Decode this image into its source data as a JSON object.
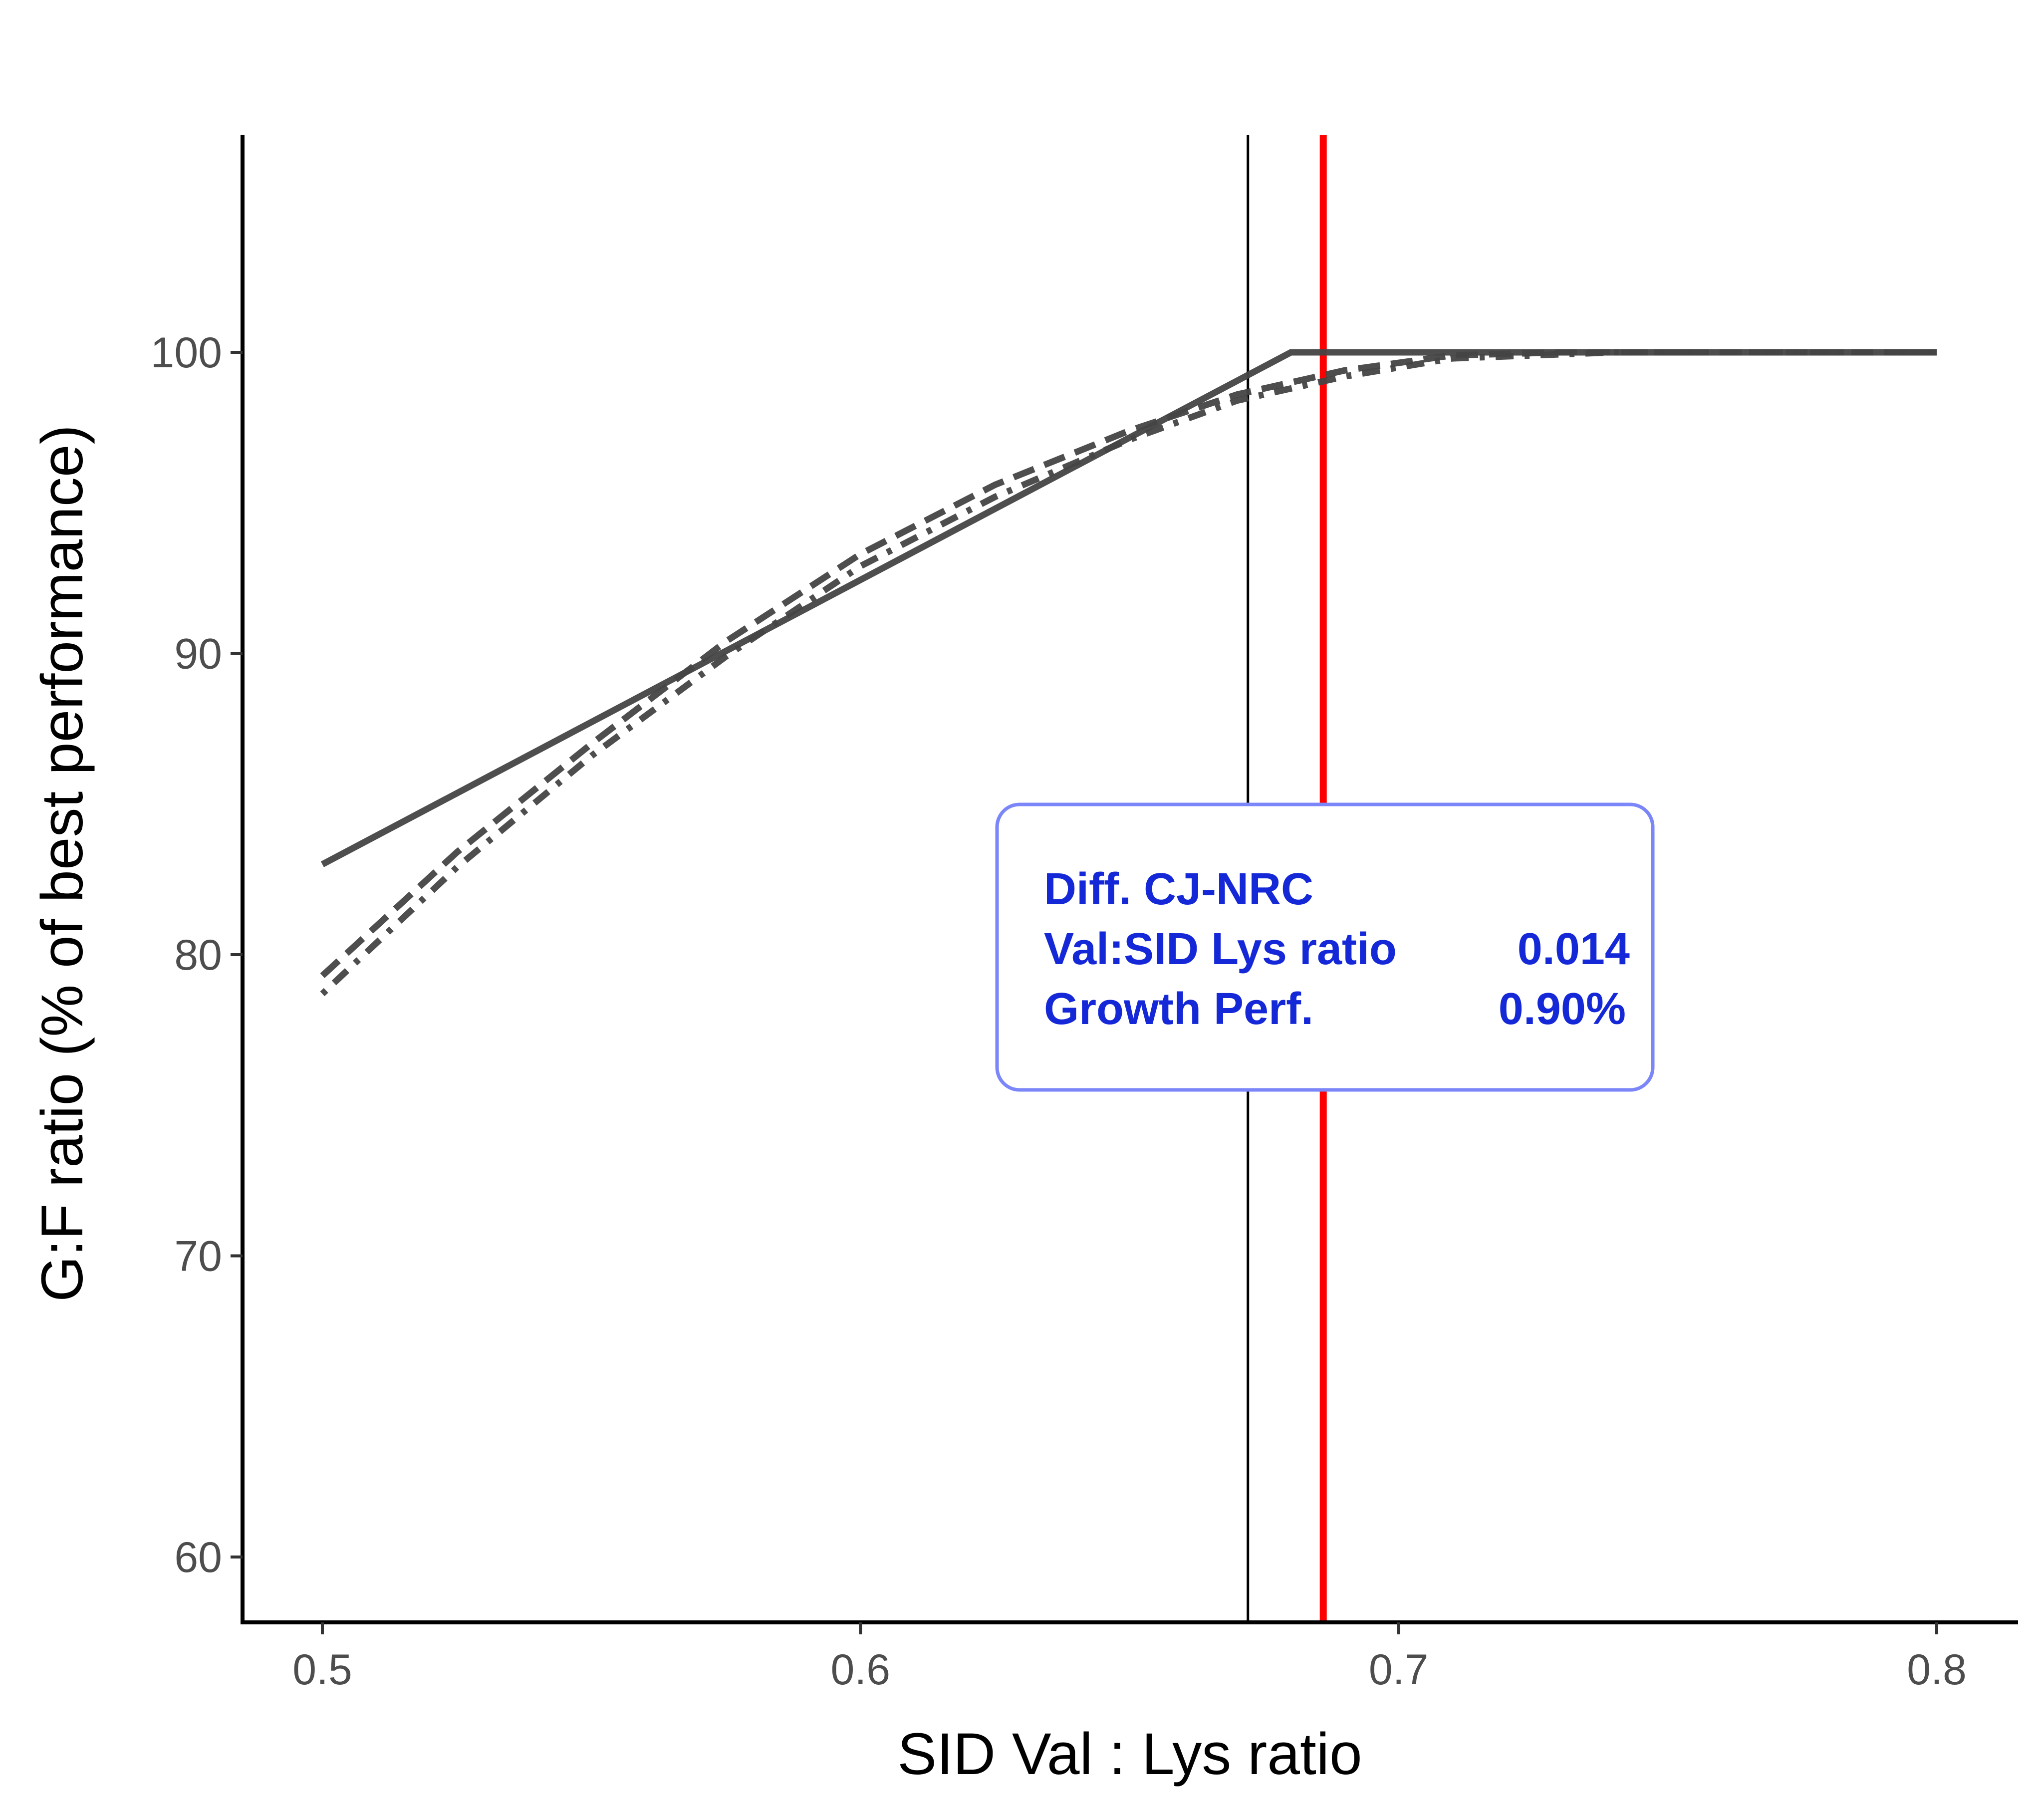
{
  "chart_data": {
    "type": "line",
    "title": "",
    "xlabel": "SID Val : Lys ratio",
    "ylabel": "G:F ratio (% of best performance)",
    "xlim": [
      0.485,
      0.815
    ],
    "ylim": [
      57.8,
      107.2
    ],
    "xticks": [
      0.5,
      0.6,
      0.7,
      0.8
    ],
    "xtick_labels": [
      "0.5",
      "0.6",
      "0.7",
      "0.8"
    ],
    "yticks": [
      60,
      70,
      80,
      90,
      100
    ],
    "ytick_labels": [
      "60",
      "70",
      "80",
      "90",
      "100"
    ],
    "grid": false,
    "series": [
      {
        "name": "solid",
        "style": "solid",
        "color": "#444444",
        "x": [
          0.5,
          0.68,
          0.8
        ],
        "y": [
          83.0,
          100.0,
          100.0
        ]
      },
      {
        "name": "dashed",
        "style": "dashed",
        "color": "#444444",
        "x": [
          0.5,
          0.525,
          0.55,
          0.575,
          0.6,
          0.625,
          0.65,
          0.67,
          0.69,
          0.71,
          0.73,
          0.8
        ],
        "y": [
          79.3,
          83.4,
          87.0,
          90.4,
          93.3,
          95.6,
          97.4,
          98.6,
          99.4,
          99.9,
          100.0,
          100.0
        ]
      },
      {
        "name": "dotdash",
        "style": "dotdash",
        "color": "#444444",
        "x": [
          0.5,
          0.525,
          0.55,
          0.575,
          0.6,
          0.625,
          0.65,
          0.67,
          0.69,
          0.71,
          0.74,
          0.8
        ],
        "y": [
          78.7,
          82.9,
          86.6,
          89.9,
          92.9,
          95.2,
          97.1,
          98.4,
          99.2,
          99.8,
          100.0,
          100.0
        ]
      }
    ],
    "vlines": [
      {
        "name": "black-reference-line",
        "x": 0.672,
        "color": "#000000"
      },
      {
        "name": "red-reference-line",
        "x": 0.686,
        "color": "#ff0000"
      }
    ],
    "annotation": {
      "title": "Diff. CJ-NRC",
      "rows": [
        {
          "label": "Val:SID Lys ratio",
          "value": "0.014"
        },
        {
          "label": "Growth Perf.",
          "value": "0.90%"
        }
      ],
      "text_color": "#1428d8",
      "border_color": "#7b86f8"
    }
  }
}
